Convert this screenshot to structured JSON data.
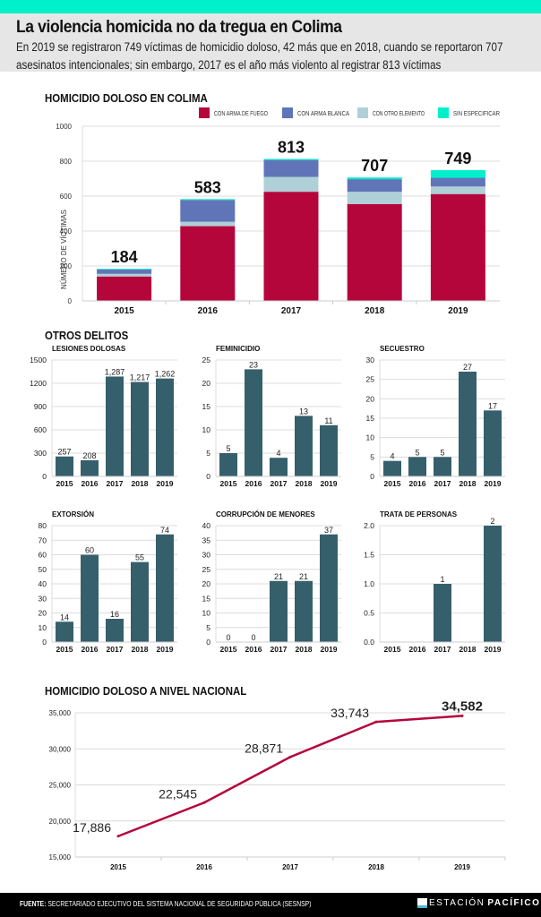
{
  "header": {
    "title": "La violencia homicida no da tregua en Colima",
    "subtitle_line1": "En 2019 se registraron 749 víctimas de homicidio doloso, 42 más que en 2018, cuando se reportaron 707",
    "subtitle_line2": "asesinatos intencionales; sin embargo, 2017 es el año más violento al registrar 813 víctimas",
    "accent_color": "#00f0cc"
  },
  "sections": {
    "colima": "HOMICIDIO DOLOSO EN COLIMA",
    "otros": "OTROS DELITOS",
    "nacional": "HOMICIDIO DOLOSO A NIVEL NACIONAL"
  },
  "footer": {
    "source_label": "FUENTE:",
    "source_text": " SECRETARIADO EJECUTIVO DEL SISTEMA NACIONAL DE SEGURIDAD PÚBLICA (SESNSP)",
    "logo_light": "ESTACIÓN",
    "logo_bold": "PACÍFICO"
  },
  "chart_data": [
    {
      "id": "colima",
      "type": "bar",
      "stacked": true,
      "title": "HOMICIDIO DOLOSO EN COLIMA",
      "ylabel": "NÚMERO DE VÍCTIMAS",
      "xlabel": "",
      "categories": [
        "2015",
        "2016",
        "2017",
        "2018",
        "2019"
      ],
      "ylim": [
        0,
        1000
      ],
      "yticks": [
        0,
        200,
        400,
        600,
        800,
        1000
      ],
      "totals": [
        184,
        583,
        813,
        707,
        749
      ],
      "legend_position": "top-right",
      "grid": true,
      "series": [
        {
          "name": "CON ARMA DE FUEGO",
          "color": "#b5063c",
          "values": [
            140,
            428,
            625,
            555,
            612
          ]
        },
        {
          "name": "CON OTRO ELEMENTO",
          "color": "#b0d0d8",
          "values": [
            15,
            25,
            85,
            70,
            43
          ]
        },
        {
          "name": "CON ARMA BLANCA",
          "color": "#6075b8",
          "values": [
            25,
            125,
            97,
            72,
            50
          ]
        },
        {
          "name": "SIN ESPECIFICAR",
          "color": "#00f0cc",
          "values": [
            4,
            5,
            6,
            10,
            44
          ]
        }
      ],
      "legend": [
        {
          "name": "CON ARMA DE FUEGO",
          "color": "#b5063c"
        },
        {
          "name": "CON ARMA BLANCA",
          "color": "#6075b8"
        },
        {
          "name": "CON OTRO ELEMENTO",
          "color": "#b0d0d8"
        },
        {
          "name": "SIN ESPECIFICAR",
          "color": "#00f0cc"
        }
      ]
    },
    {
      "id": "lesiones",
      "type": "bar",
      "title": "LESIONES DOLOSAS",
      "categories": [
        "2015",
        "2016",
        "2017",
        "2018",
        "2019"
      ],
      "values": [
        257,
        208,
        1287,
        1217,
        1262
      ],
      "labels": [
        "257",
        "208",
        "1,287",
        "1,217",
        "1,262"
      ],
      "ylim": [
        0,
        1500
      ],
      "yticks": [
        "0",
        "300",
        "600",
        "900",
        "1200",
        "1500"
      ],
      "color": "#365f6c",
      "grid": true
    },
    {
      "id": "feminicidio",
      "type": "bar",
      "title": "FEMINICIDIO",
      "categories": [
        "2015",
        "2016",
        "2017",
        "2018",
        "2019"
      ],
      "values": [
        5,
        23,
        4,
        13,
        11
      ],
      "labels": [
        "5",
        "23",
        "4",
        "13",
        "11"
      ],
      "ylim": [
        0,
        25
      ],
      "yticks": [
        "0",
        "5",
        "10",
        "15",
        "20",
        "25"
      ],
      "color": "#365f6c",
      "grid": true
    },
    {
      "id": "secuestro",
      "type": "bar",
      "title": "SECUESTRO",
      "categories": [
        "2015",
        "2016",
        "2017",
        "2018",
        "2019"
      ],
      "values": [
        4,
        5,
        5,
        27,
        17
      ],
      "labels": [
        "4",
        "5",
        "5",
        "27",
        "17"
      ],
      "ylim": [
        0,
        30
      ],
      "yticks": [
        "0",
        "5",
        "10",
        "15",
        "20",
        "25",
        "30"
      ],
      "color": "#365f6c",
      "grid": true
    },
    {
      "id": "extorsion",
      "type": "bar",
      "title": "EXTORSIÓN",
      "categories": [
        "2015",
        "2016",
        "2017",
        "2018",
        "2019"
      ],
      "values": [
        14,
        60,
        16,
        55,
        74
      ],
      "labels": [
        "14",
        "60",
        "16",
        "55",
        "74"
      ],
      "ylim": [
        0,
        80
      ],
      "yticks": [
        "0",
        "10",
        "20",
        "30",
        "40",
        "50",
        "60",
        "70",
        "80"
      ],
      "color": "#365f6c",
      "grid": true
    },
    {
      "id": "corrupcion",
      "type": "bar",
      "title": "CORRUPCIÓN DE MENORES",
      "categories": [
        "2015",
        "2016",
        "2017",
        "2018",
        "2019"
      ],
      "values": [
        0,
        0,
        21,
        21,
        37
      ],
      "labels": [
        "0",
        "0",
        "21",
        "21",
        "37"
      ],
      "ylim": [
        0,
        40
      ],
      "yticks": [
        "0",
        "5",
        "10",
        "15",
        "20",
        "25",
        "30",
        "35",
        "40"
      ],
      "color": "#365f6c",
      "grid": true
    },
    {
      "id": "trata",
      "type": "bar",
      "title": "TRATA DE PERSONAS",
      "categories": [
        "2015",
        "2016",
        "2017",
        "2018",
        "2019"
      ],
      "values": [
        0,
        0,
        1,
        0,
        2
      ],
      "labels": [
        "",
        "",
        "1",
        "",
        "2"
      ],
      "ylim": [
        0,
        2
      ],
      "yticks": [
        "0.0",
        "0.5",
        "1.0",
        "1.5",
        "2.0"
      ],
      "color": "#365f6c",
      "grid": true
    },
    {
      "id": "nacional",
      "type": "line",
      "title": "HOMICIDIO DOLOSO A NIVEL NACIONAL",
      "x": [
        "2015",
        "2016",
        "2017",
        "2018",
        "2019"
      ],
      "series": [
        {
          "name": "Homicidio doloso nacional",
          "values": [
            17886,
            22545,
            28871,
            33743,
            34582
          ],
          "color": "#b5063c"
        }
      ],
      "labels": [
        "17,886",
        "22,545",
        "28,871",
        "33,743",
        "34,582"
      ],
      "ylim": [
        15000,
        35000
      ],
      "yticks": [
        "15,000",
        "20,000",
        "25,000",
        "30,000",
        "35,000"
      ],
      "grid": true
    }
  ]
}
